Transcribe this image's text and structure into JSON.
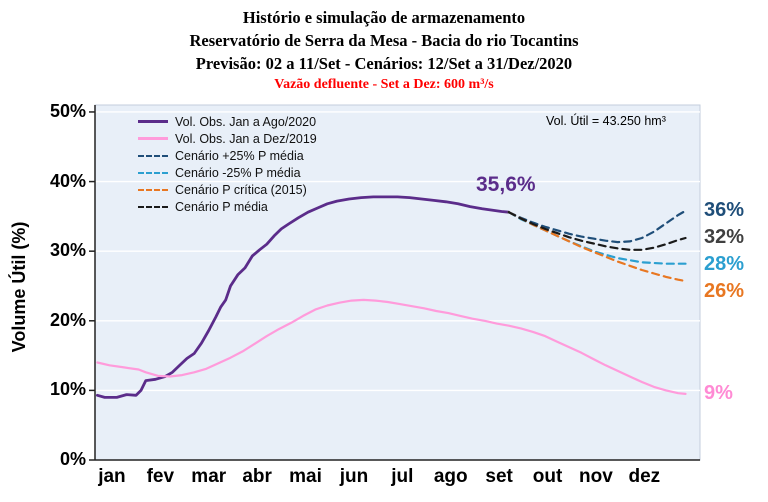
{
  "header": {
    "line1": "Histório e simulação de armazenamento",
    "line2": "Reservatório de Serra da Mesa - Bacia do rio Tocantins",
    "line3": "Previsão: 02 a 11/Set - Cenários: 12/Set a 31/Dez/2020",
    "line4": "Vazão defluente - Set a Dez: 600 m³/s"
  },
  "annotations": {
    "vol_util": "Vol. Útil  = 43.250 hm³",
    "current_value": "35,6%",
    "current_value_color": "#5b2c8a"
  },
  "chart_data": {
    "type": "line",
    "title": "Histório e simulação de armazenamento - Reservatório de Serra da Mesa",
    "plot_bg": "#e8eff8",
    "grid_color": "#ffffff",
    "axis_color": "#222222",
    "x_axis": {
      "labels": [
        "jan",
        "fev",
        "mar",
        "abr",
        "mai",
        "jun",
        "jul",
        "ago",
        "set",
        "out",
        "nov",
        "dez"
      ],
      "range": [
        0,
        12.5
      ]
    },
    "y_axis": {
      "label": "Volume Útil (%)",
      "range": [
        0,
        51
      ],
      "ticks": [
        {
          "pct": 0,
          "label": "0%"
        },
        {
          "pct": 10,
          "label": "10%"
        },
        {
          "pct": 20,
          "label": "20%"
        },
        {
          "pct": 30,
          "label": "30%"
        },
        {
          "pct": 40,
          "label": "40%"
        },
        {
          "pct": 50,
          "label": "50%"
        }
      ]
    },
    "legend": {
      "position": "top-left",
      "entries": [
        {
          "label": "Vol. Obs. Jan a Ago/2020",
          "color": "#5b2c8a",
          "dash": false
        },
        {
          "label": "Vol. Obs. Jan a Dez/2019",
          "color": "#ff9bdb",
          "dash": false
        },
        {
          "label": "Cenário +25% P média",
          "color": "#1f4e79",
          "dash": true
        },
        {
          "label": "Cenário -25% P média",
          "color": "#2b9fd0",
          "dash": true
        },
        {
          "label": "Cenário P crítica (2015)",
          "color": "#e87722",
          "dash": true
        },
        {
          "label": "Cenário P média",
          "color": "#1a1a1a",
          "dash": true
        }
      ]
    },
    "series": [
      {
        "id": "obs-2020",
        "name": "Vol. Obs. Jan a Ago/2020",
        "color": "#5b2c8a",
        "dash": "",
        "width": 2.8,
        "points": [
          [
            0.05,
            9.3
          ],
          [
            0.2,
            9.0
          ],
          [
            0.45,
            9.0
          ],
          [
            0.65,
            9.4
          ],
          [
            0.85,
            9.3
          ],
          [
            0.95,
            10.0
          ],
          [
            1.05,
            11.4
          ],
          [
            1.25,
            11.6
          ],
          [
            1.45,
            12.0
          ],
          [
            1.6,
            12.6
          ],
          [
            1.75,
            13.6
          ],
          [
            1.9,
            14.6
          ],
          [
            2.05,
            15.3
          ],
          [
            2.2,
            16.8
          ],
          [
            2.35,
            18.6
          ],
          [
            2.5,
            20.6
          ],
          [
            2.6,
            22.0
          ],
          [
            2.7,
            23.0
          ],
          [
            2.8,
            25.0
          ],
          [
            2.95,
            26.6
          ],
          [
            3.1,
            27.6
          ],
          [
            3.25,
            29.3
          ],
          [
            3.4,
            30.2
          ],
          [
            3.55,
            31.0
          ],
          [
            3.7,
            32.2
          ],
          [
            3.85,
            33.2
          ],
          [
            4.0,
            33.9
          ],
          [
            4.2,
            34.8
          ],
          [
            4.4,
            35.6
          ],
          [
            4.6,
            36.2
          ],
          [
            4.8,
            36.8
          ],
          [
            5.0,
            37.2
          ],
          [
            5.25,
            37.5
          ],
          [
            5.5,
            37.7
          ],
          [
            5.75,
            37.8
          ],
          [
            6.0,
            37.8
          ],
          [
            6.25,
            37.8
          ],
          [
            6.5,
            37.7
          ],
          [
            6.75,
            37.5
          ],
          [
            7.0,
            37.3
          ],
          [
            7.25,
            37.1
          ],
          [
            7.5,
            36.8
          ],
          [
            7.75,
            36.4
          ],
          [
            8.0,
            36.1
          ],
          [
            8.2,
            35.9
          ],
          [
            8.4,
            35.7
          ],
          [
            8.55,
            35.6
          ]
        ]
      },
      {
        "id": "obs-2019",
        "name": "Vol. Obs. Jan a Dez/2019",
        "color": "#ff9bdb",
        "dash": "",
        "width": 2.2,
        "points": [
          [
            0.05,
            14.0
          ],
          [
            0.3,
            13.6
          ],
          [
            0.6,
            13.3
          ],
          [
            0.9,
            13.0
          ],
          [
            1.05,
            12.6
          ],
          [
            1.3,
            12.1
          ],
          [
            1.55,
            12.0
          ],
          [
            1.8,
            12.2
          ],
          [
            2.05,
            12.6
          ],
          [
            2.3,
            13.1
          ],
          [
            2.55,
            13.9
          ],
          [
            2.8,
            14.7
          ],
          [
            3.05,
            15.6
          ],
          [
            3.3,
            16.7
          ],
          [
            3.55,
            17.8
          ],
          [
            3.8,
            18.8
          ],
          [
            4.05,
            19.7
          ],
          [
            4.3,
            20.7
          ],
          [
            4.55,
            21.6
          ],
          [
            4.8,
            22.2
          ],
          [
            5.05,
            22.6
          ],
          [
            5.3,
            22.9
          ],
          [
            5.55,
            23.0
          ],
          [
            5.8,
            22.9
          ],
          [
            6.05,
            22.7
          ],
          [
            6.3,
            22.4
          ],
          [
            6.55,
            22.1
          ],
          [
            6.8,
            21.8
          ],
          [
            7.05,
            21.4
          ],
          [
            7.3,
            21.1
          ],
          [
            7.55,
            20.7
          ],
          [
            7.8,
            20.3
          ],
          [
            8.05,
            20.0
          ],
          [
            8.3,
            19.6
          ],
          [
            8.55,
            19.3
          ],
          [
            8.8,
            18.9
          ],
          [
            9.05,
            18.4
          ],
          [
            9.3,
            17.8
          ],
          [
            9.55,
            17.0
          ],
          [
            9.8,
            16.2
          ],
          [
            10.05,
            15.4
          ],
          [
            10.3,
            14.5
          ],
          [
            10.55,
            13.6
          ],
          [
            10.8,
            12.8
          ],
          [
            11.05,
            12.0
          ],
          [
            11.3,
            11.2
          ],
          [
            11.55,
            10.5
          ],
          [
            11.8,
            10.0
          ],
          [
            12.05,
            9.6
          ],
          [
            12.2,
            9.5
          ]
        ]
      },
      {
        "id": "scenario-plus25",
        "name": "Cenário +25% P média",
        "color": "#1f4e79",
        "dash": "7,5",
        "width": 2.2,
        "points": [
          [
            8.55,
            35.6
          ],
          [
            8.8,
            34.8
          ],
          [
            9.05,
            34.1
          ],
          [
            9.3,
            33.5
          ],
          [
            9.55,
            33.0
          ],
          [
            9.8,
            32.5
          ],
          [
            10.05,
            32.1
          ],
          [
            10.3,
            31.8
          ],
          [
            10.55,
            31.5
          ],
          [
            10.8,
            31.3
          ],
          [
            11.05,
            31.4
          ],
          [
            11.3,
            31.9
          ],
          [
            11.55,
            32.8
          ],
          [
            11.8,
            34.0
          ],
          [
            12.05,
            35.2
          ],
          [
            12.2,
            35.8
          ]
        ]
      },
      {
        "id": "scenario-minus25",
        "name": "Cenário -25% P média",
        "color": "#2b9fd0",
        "dash": "7,5",
        "width": 2.2,
        "points": [
          [
            8.55,
            35.6
          ],
          [
            8.8,
            34.6
          ],
          [
            9.05,
            33.8
          ],
          [
            9.3,
            33.0
          ],
          [
            9.55,
            32.2
          ],
          [
            9.8,
            31.4
          ],
          [
            10.05,
            30.7
          ],
          [
            10.3,
            30.0
          ],
          [
            10.55,
            29.5
          ],
          [
            10.8,
            29.0
          ],
          [
            11.05,
            28.7
          ],
          [
            11.3,
            28.4
          ],
          [
            11.55,
            28.3
          ],
          [
            11.8,
            28.2
          ],
          [
            12.05,
            28.2
          ],
          [
            12.2,
            28.2
          ]
        ]
      },
      {
        "id": "scenario-critica",
        "name": "Cenário P crítica (2015)",
        "color": "#e87722",
        "dash": "7,5",
        "width": 2.2,
        "points": [
          [
            8.55,
            35.6
          ],
          [
            8.8,
            34.7
          ],
          [
            9.05,
            33.8
          ],
          [
            9.3,
            33.0
          ],
          [
            9.55,
            32.2
          ],
          [
            9.8,
            31.4
          ],
          [
            10.05,
            30.6
          ],
          [
            10.3,
            29.9
          ],
          [
            10.55,
            29.2
          ],
          [
            10.8,
            28.5
          ],
          [
            11.05,
            27.9
          ],
          [
            11.3,
            27.3
          ],
          [
            11.55,
            26.8
          ],
          [
            11.8,
            26.3
          ],
          [
            12.05,
            25.9
          ],
          [
            12.2,
            25.7
          ]
        ]
      },
      {
        "id": "scenario-media",
        "name": "Cenário P média",
        "color": "#1a1a1a",
        "dash": "7,5",
        "width": 2.2,
        "points": [
          [
            8.55,
            35.6
          ],
          [
            8.8,
            34.7
          ],
          [
            9.05,
            33.9
          ],
          [
            9.3,
            33.2
          ],
          [
            9.55,
            32.6
          ],
          [
            9.8,
            32.0
          ],
          [
            10.05,
            31.5
          ],
          [
            10.3,
            31.1
          ],
          [
            10.55,
            30.7
          ],
          [
            10.8,
            30.4
          ],
          [
            11.05,
            30.2
          ],
          [
            11.3,
            30.2
          ],
          [
            11.55,
            30.5
          ],
          [
            11.8,
            31.0
          ],
          [
            12.05,
            31.6
          ],
          [
            12.2,
            31.9
          ]
        ]
      }
    ],
    "end_labels": [
      {
        "text": "36%",
        "color": "#1f4e79",
        "pct": 35.8
      },
      {
        "text": "32%",
        "color": "#404040",
        "pct": 31.9
      },
      {
        "text": "28%",
        "color": "#2b9fd0",
        "pct": 28.2
      },
      {
        "text": "26%",
        "color": "#e87722",
        "pct": 25.7
      },
      {
        "text": "9%",
        "color": "#ff8ad4",
        "pct": 9.5
      }
    ]
  }
}
